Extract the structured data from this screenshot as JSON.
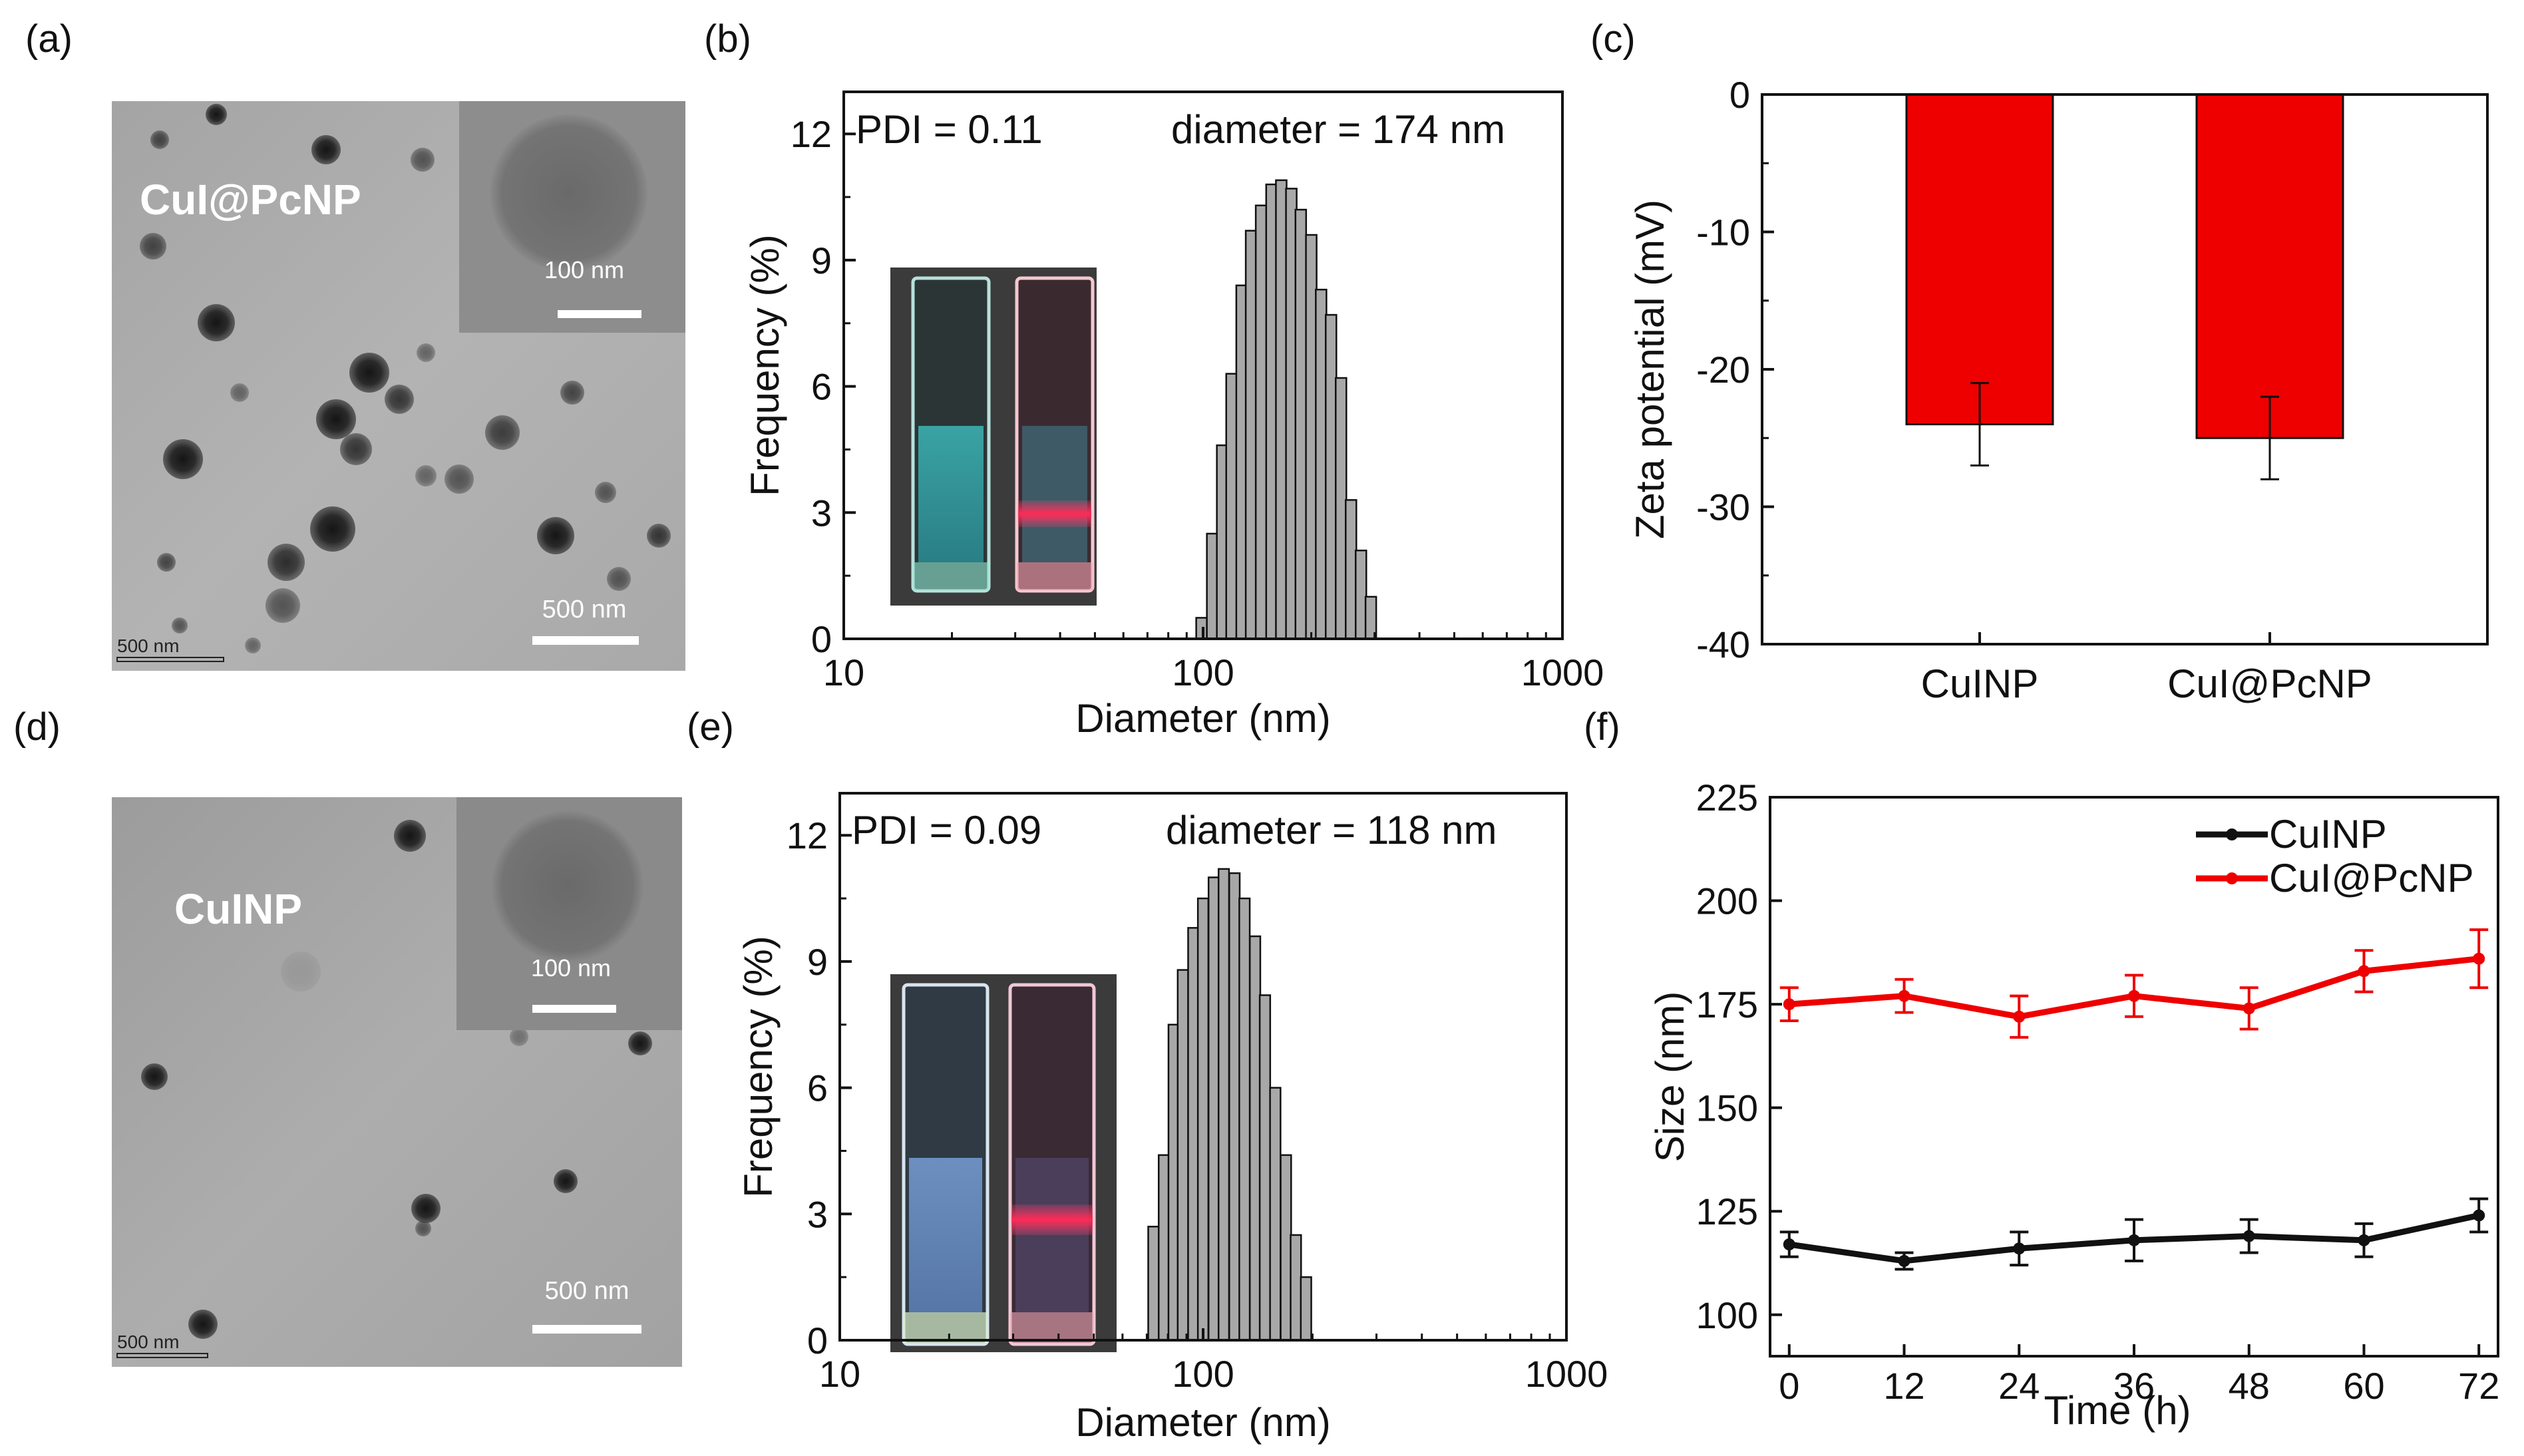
{
  "panel_labels": [
    "(a)",
    "(b)",
    "(c)",
    "(d)",
    "(e)",
    "(f)"
  ],
  "tem": [
    {
      "sample": "CuI@PcNP",
      "inset_scale": "100 nm",
      "main_scale": "500 nm",
      "corner_scale": "500 nm"
    },
    {
      "sample": "CuINP",
      "inset_scale": "100 nm",
      "main_scale": "500 nm",
      "corner_scale": "500 nm"
    }
  ],
  "colors": {
    "red": "#ee0000",
    "black": "#111111",
    "bar_gray": "#a8a8a8"
  },
  "chart_data": [
    {
      "id": "b",
      "type": "bar",
      "title": "",
      "xlabel": "Diameter (nm)",
      "ylabel": "Frequency (%)",
      "xscale": "log",
      "xlim": [
        10,
        1000
      ],
      "ylim": [
        0,
        13
      ],
      "xticks": [
        10,
        100,
        1000
      ],
      "xtick_labels": [
        "10",
        "100",
        "1000"
      ],
      "yticks": [
        0,
        3,
        6,
        9,
        12
      ],
      "ytick_labels": [
        "0",
        "3",
        "6",
        "9",
        "12"
      ],
      "annotations": {
        "pdi": "PDI = 0.11",
        "diameter": "diameter = 174 nm"
      },
      "x": [
        99,
        106,
        113,
        120,
        128,
        136,
        145,
        155,
        165,
        176,
        187,
        200,
        213,
        227,
        242,
        258,
        275,
        293
      ],
      "values": [
        0.5,
        2.5,
        4.6,
        6.3,
        8.4,
        9.7,
        10.3,
        10.8,
        10.9,
        10.7,
        10.2,
        9.6,
        8.3,
        7.7,
        6.2,
        3.3,
        2.1,
        1.0
      ]
    },
    {
      "id": "c",
      "type": "bar",
      "title": "",
      "xlabel": "",
      "ylabel": "Zeta potential (mV)",
      "ylim": [
        -40,
        0
      ],
      "yticks": [
        0,
        -10,
        -20,
        -30,
        -40
      ],
      "ytick_labels": [
        "0",
        "-10",
        "-20",
        "-30",
        "-40"
      ],
      "categories": [
        "CuINP",
        "CuI@PcNP"
      ],
      "values": [
        -24,
        -25
      ],
      "errors": [
        3,
        3
      ]
    },
    {
      "id": "e",
      "type": "bar",
      "title": "",
      "xlabel": "Diameter (nm)",
      "ylabel": "Frequency (%)",
      "xscale": "log",
      "xlim": [
        10,
        1000
      ],
      "ylim": [
        0,
        13
      ],
      "xticks": [
        10,
        100,
        1000
      ],
      "xtick_labels": [
        "10",
        "100",
        "1000"
      ],
      "yticks": [
        0,
        3,
        6,
        9,
        12
      ],
      "ytick_labels": [
        "0",
        "3",
        "6",
        "9",
        "12"
      ],
      "annotations": {
        "pdi": "PDI = 0.09",
        "diameter": "diameter = 118 nm"
      },
      "x": [
        73,
        78,
        83,
        88,
        94,
        100,
        107,
        114,
        122,
        130,
        139,
        148,
        158,
        169,
        180,
        192
      ],
      "values": [
        2.7,
        4.4,
        7.5,
        8.8,
        9.8,
        10.5,
        11.0,
        11.2,
        11.1,
        10.5,
        9.6,
        8.2,
        6.0,
        4.4,
        2.5,
        1.5
      ]
    },
    {
      "id": "f",
      "type": "line",
      "title": "",
      "xlabel": "Time (h)",
      "ylabel": "Size (nm)",
      "xlim": [
        -2,
        74
      ],
      "ylim": [
        90,
        225
      ],
      "xticks": [
        0,
        12,
        24,
        36,
        48,
        60,
        72
      ],
      "xtick_labels": [
        "0",
        "12",
        "24",
        "36",
        "48",
        "60",
        "72"
      ],
      "yticks": [
        100,
        125,
        150,
        175,
        200,
        225
      ],
      "ytick_labels": [
        "100",
        "125",
        "150",
        "175",
        "200",
        "225"
      ],
      "legend": "top-right",
      "x": [
        0,
        12,
        24,
        36,
        48,
        60,
        72
      ],
      "series": [
        {
          "name": "CuINP",
          "color": "#111111",
          "values": [
            117,
            113,
            116,
            118,
            119,
            118,
            124
          ],
          "errors": [
            3,
            2,
            4,
            5,
            4,
            4,
            4
          ]
        },
        {
          "name": "CuI@PcNP",
          "color": "#ee0000",
          "values": [
            175,
            177,
            172,
            177,
            174,
            183,
            186
          ],
          "errors": [
            4,
            4,
            5,
            5,
            5,
            5,
            7
          ]
        }
      ]
    }
  ]
}
